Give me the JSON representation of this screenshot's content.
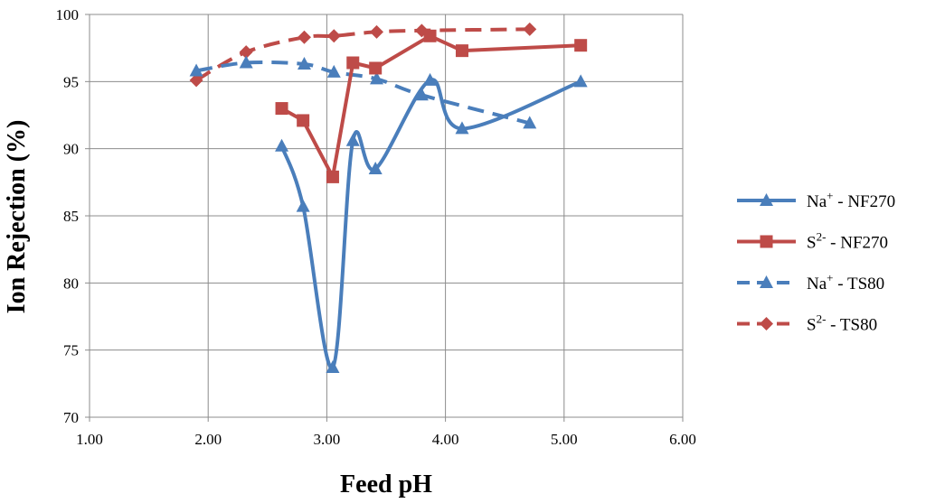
{
  "chart_data": {
    "type": "line",
    "title": "",
    "xlabel": "Feed pH",
    "ylabel": "Ion Rejection (%)",
    "xlim": [
      1.0,
      6.0
    ],
    "ylim": [
      70,
      100
    ],
    "xticks": [
      1.0,
      2.0,
      3.0,
      4.0,
      5.0,
      6.0
    ],
    "xtick_labels": [
      "1.00",
      "2.00",
      "3.00",
      "4.00",
      "5.00",
      "6.00"
    ],
    "yticks": [
      70,
      75,
      80,
      85,
      90,
      95,
      100
    ],
    "ytick_labels": [
      "70",
      "75",
      "80",
      "85",
      "90",
      "95",
      "100"
    ],
    "grid": "vertical and horizontal major gridlines",
    "legend_position": "right",
    "series": [
      {
        "name": "Na+ - NF270",
        "legend_ion": "Na",
        "legend_charge": "+",
        "legend_rest": " - NF270",
        "color": "#4a7ebb",
        "line_style": "solid",
        "marker": "triangle",
        "smooth": true,
        "x": [
          2.62,
          2.8,
          3.05,
          3.22,
          3.41,
          3.87,
          4.14,
          5.14
        ],
        "y": [
          90.2,
          85.7,
          73.7,
          90.6,
          88.5,
          95.1,
          91.5,
          95.0
        ]
      },
      {
        "name": "S2- - NF270",
        "legend_ion": "S",
        "legend_charge": "2-",
        "legend_rest": " - NF270",
        "color": "#be4b48",
        "line_style": "solid",
        "marker": "square",
        "smooth": false,
        "x": [
          2.62,
          2.8,
          3.05,
          3.22,
          3.41,
          3.87,
          4.14,
          5.14
        ],
        "y": [
          93.0,
          92.1,
          87.9,
          96.4,
          96.0,
          98.4,
          97.3,
          97.7
        ]
      },
      {
        "name": "Na+ - TS80",
        "legend_ion": "Na",
        "legend_charge": "+",
        "legend_rest": " - TS80",
        "color": "#4a7ebb",
        "line_style": "dashed",
        "marker": "triangle",
        "smooth": true,
        "x": [
          1.9,
          2.32,
          2.81,
          3.06,
          3.42,
          3.8,
          4.71
        ],
        "y": [
          95.8,
          96.4,
          96.3,
          95.7,
          95.2,
          94.0,
          91.9
        ]
      },
      {
        "name": "S2- - TS80",
        "legend_ion": "S",
        "legend_charge": "2-",
        "legend_rest": " - TS80",
        "color": "#be4b48",
        "line_style": "dashed",
        "marker": "diamond",
        "smooth": true,
        "x": [
          1.9,
          2.32,
          2.81,
          3.06,
          3.42,
          3.8,
          4.71
        ],
        "y": [
          95.1,
          97.2,
          98.3,
          98.4,
          98.7,
          98.8,
          98.9
        ]
      }
    ]
  }
}
